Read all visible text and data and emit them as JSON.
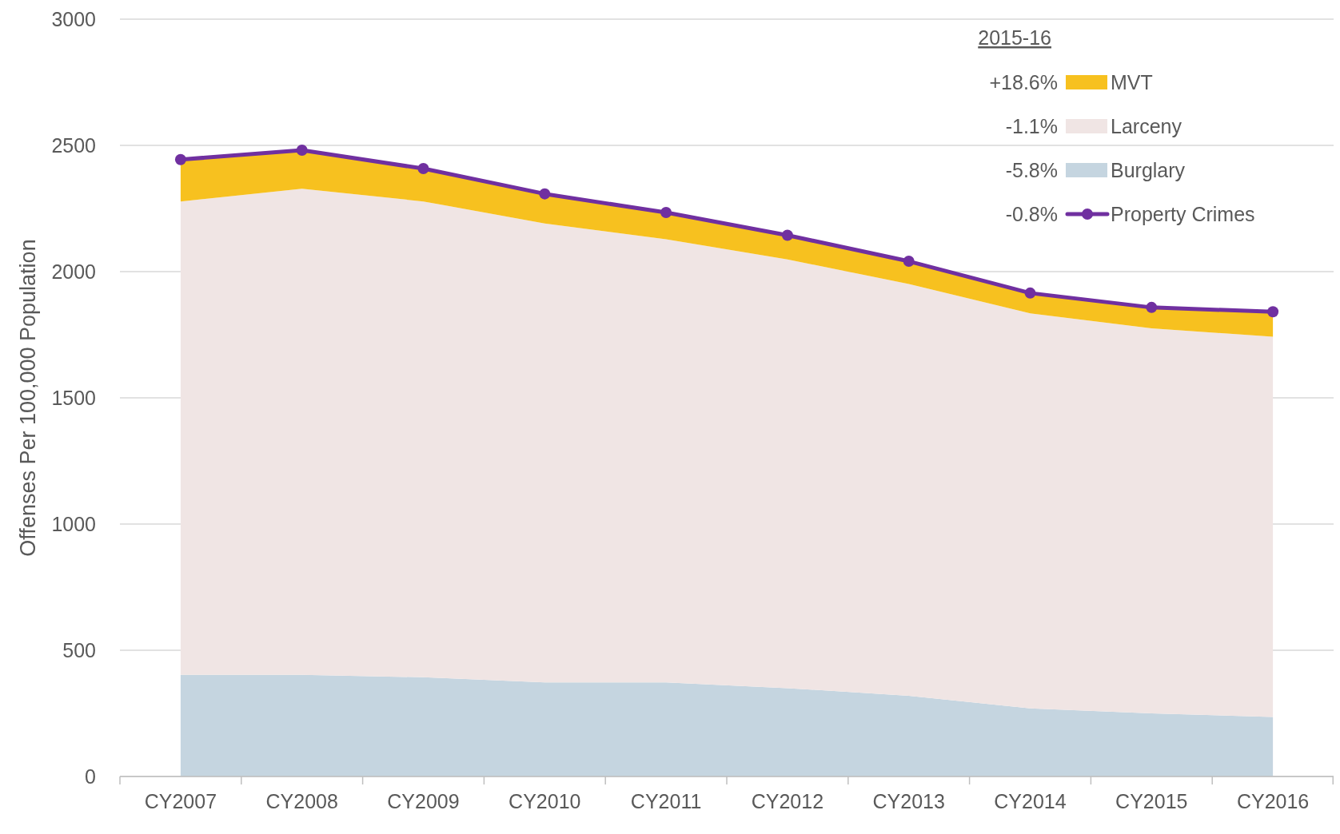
{
  "chart_data": {
    "type": "area",
    "ylabel": "Offenses Per 100,000 Population",
    "categories": [
      "CY2007",
      "CY2008",
      "CY2009",
      "CY2010",
      "CY2011",
      "CY2012",
      "CY2013",
      "CY2014",
      "CY2015",
      "CY2016"
    ],
    "series": [
      {
        "name": "Burglary",
        "color": "#c5d5e0",
        "values": [
          403,
          403,
          393,
          373,
          373,
          350,
          320,
          270,
          250,
          236
        ]
      },
      {
        "name": "Larceny",
        "color": "#f0e5e4",
        "values": [
          1875,
          1925,
          1885,
          1818,
          1755,
          1698,
          1631,
          1565,
          1525,
          1506
        ]
      },
      {
        "name": "MVT",
        "color": "#f7c11f",
        "values": [
          166,
          153,
          130,
          117,
          106,
          96,
          90,
          80,
          83,
          99
        ]
      },
      {
        "name": "Property Crimes",
        "type": "line",
        "marker": "circle",
        "color": "#7030a0",
        "values": [
          2444,
          2481,
          2408,
          2308,
          2234,
          2144,
          2041,
          1915,
          1858,
          1841
        ]
      }
    ],
    "stacked": true,
    "ylim": [
      0,
      3000
    ],
    "yticks": [
      0,
      500,
      1000,
      1500,
      2000,
      2500,
      3000
    ],
    "grid": "y",
    "legend": "top right",
    "legend_title": "2015-16",
    "annotations": [
      "+18.6%",
      "-1.1%",
      "-5.8%",
      "-0.8%"
    ]
  }
}
